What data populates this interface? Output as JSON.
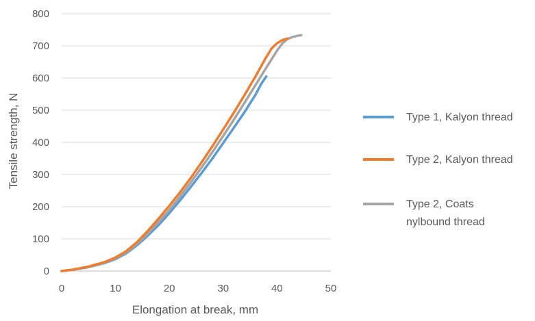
{
  "chart_data": {
    "type": "line",
    "title": "",
    "xlabel": "Elongation at break, mm",
    "ylabel": "Tensile strength, N",
    "xlim": [
      0,
      50
    ],
    "ylim": [
      0,
      800
    ],
    "xticks": [
      "0",
      "10",
      "20",
      "30",
      "40",
      "50"
    ],
    "yticks": [
      "0",
      "100",
      "200",
      "300",
      "400",
      "500",
      "600",
      "700",
      "800"
    ],
    "grid": "horizontal",
    "legend_position": "right",
    "series": [
      {
        "name": "Type 1, Kalyon thread",
        "color": "#5b9bd5",
        "points": [
          [
            0,
            0
          ],
          [
            2,
            4
          ],
          [
            5,
            12
          ],
          [
            8,
            25
          ],
          [
            10,
            37
          ],
          [
            12,
            55
          ],
          [
            14,
            80
          ],
          [
            16,
            110
          ],
          [
            18,
            143
          ],
          [
            20,
            180
          ],
          [
            22,
            220
          ],
          [
            24,
            262
          ],
          [
            26,
            305
          ],
          [
            28,
            350
          ],
          [
            30,
            398
          ],
          [
            32,
            446
          ],
          [
            34,
            495
          ],
          [
            36,
            548
          ],
          [
            37,
            580
          ],
          [
            38,
            605
          ]
        ]
      },
      {
        "name": "Type 2, Kalyon thread",
        "color": "#ed7d31",
        "points": [
          [
            0,
            0
          ],
          [
            2,
            4
          ],
          [
            5,
            14
          ],
          [
            8,
            28
          ],
          [
            10,
            42
          ],
          [
            12,
            62
          ],
          [
            14,
            90
          ],
          [
            16,
            125
          ],
          [
            18,
            163
          ],
          [
            20,
            203
          ],
          [
            22,
            245
          ],
          [
            24,
            290
          ],
          [
            26,
            338
          ],
          [
            28,
            388
          ],
          [
            30,
            440
          ],
          [
            32,
            493
          ],
          [
            34,
            548
          ],
          [
            36,
            605
          ],
          [
            38,
            665
          ],
          [
            39,
            692
          ],
          [
            40,
            708
          ],
          [
            41,
            718
          ],
          [
            42,
            723
          ]
        ]
      },
      {
        "name": "Type 2, Coats nylbound thread",
        "color": "#a5a5a5",
        "points": [
          [
            0,
            0
          ],
          [
            2,
            4
          ],
          [
            5,
            13
          ],
          [
            8,
            26
          ],
          [
            10,
            39
          ],
          [
            12,
            58
          ],
          [
            14,
            84
          ],
          [
            16,
            116
          ],
          [
            18,
            152
          ],
          [
            20,
            190
          ],
          [
            22,
            232
          ],
          [
            24,
            276
          ],
          [
            26,
            322
          ],
          [
            28,
            370
          ],
          [
            30,
            420
          ],
          [
            32,
            471
          ],
          [
            34,
            524
          ],
          [
            36,
            578
          ],
          [
            38,
            632
          ],
          [
            40,
            685
          ],
          [
            41,
            708
          ],
          [
            42,
            722
          ],
          [
            43,
            728
          ],
          [
            44,
            732
          ],
          [
            44.5,
            733
          ]
        ]
      }
    ]
  }
}
